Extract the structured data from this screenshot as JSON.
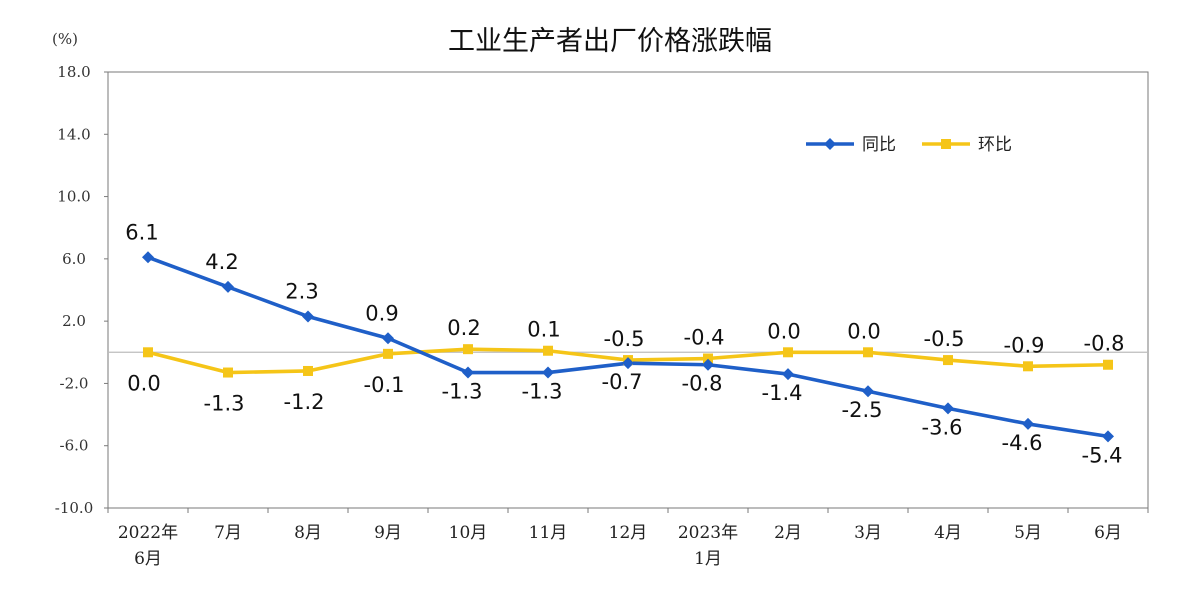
{
  "chart_data": {
    "type": "line",
    "title": "工业生产者出厂价格涨跌幅",
    "ylabel": "(%)",
    "xlabel": "",
    "ylim": [
      -10.0,
      18.0
    ],
    "yticks": [
      "18.0",
      "14.0",
      "10.0",
      "6.0",
      "2.0",
      "-2.0",
      "-6.0",
      "-10.0"
    ],
    "ytick_values": [
      18,
      14,
      10,
      6,
      2,
      -2,
      -6,
      -10
    ],
    "categories": [
      [
        "2022年",
        "6月"
      ],
      [
        "7月"
      ],
      [
        "8月"
      ],
      [
        "9月"
      ],
      [
        "10月"
      ],
      [
        "11月"
      ],
      [
        "12月"
      ],
      [
        "2023年",
        "1月"
      ],
      [
        "2月"
      ],
      [
        "3月"
      ],
      [
        "4月"
      ],
      [
        "5月"
      ],
      [
        "6月"
      ]
    ],
    "legend_position": "top-right",
    "series": [
      {
        "name": "同比",
        "color": "#1f5fc8",
        "marker": "diamond",
        "values": [
          6.1,
          4.2,
          2.3,
          0.9,
          -1.3,
          -1.3,
          -0.7,
          -0.8,
          -1.4,
          -2.5,
          -3.6,
          -4.6,
          -5.4
        ],
        "labels": [
          "6.1",
          "4.2",
          "2.3",
          "0.9",
          "-1.3",
          "-1.3",
          "-0.7",
          "-0.8",
          "-1.4",
          "-2.5",
          "-3.6",
          "-4.6",
          "-5.4"
        ]
      },
      {
        "name": "环比",
        "color": "#f5c518",
        "marker": "square",
        "values": [
          0.0,
          -1.3,
          -1.2,
          -0.1,
          0.2,
          0.1,
          -0.5,
          -0.4,
          0.0,
          0.0,
          -0.5,
          -0.9,
          -0.8
        ],
        "labels": [
          "0.0",
          "-1.3",
          "-1.2",
          "-0.1",
          "0.2",
          "0.1",
          "-0.5",
          "-0.4",
          "0.0",
          "0.0",
          "-0.5",
          "-0.9",
          "-0.8"
        ]
      }
    ]
  }
}
